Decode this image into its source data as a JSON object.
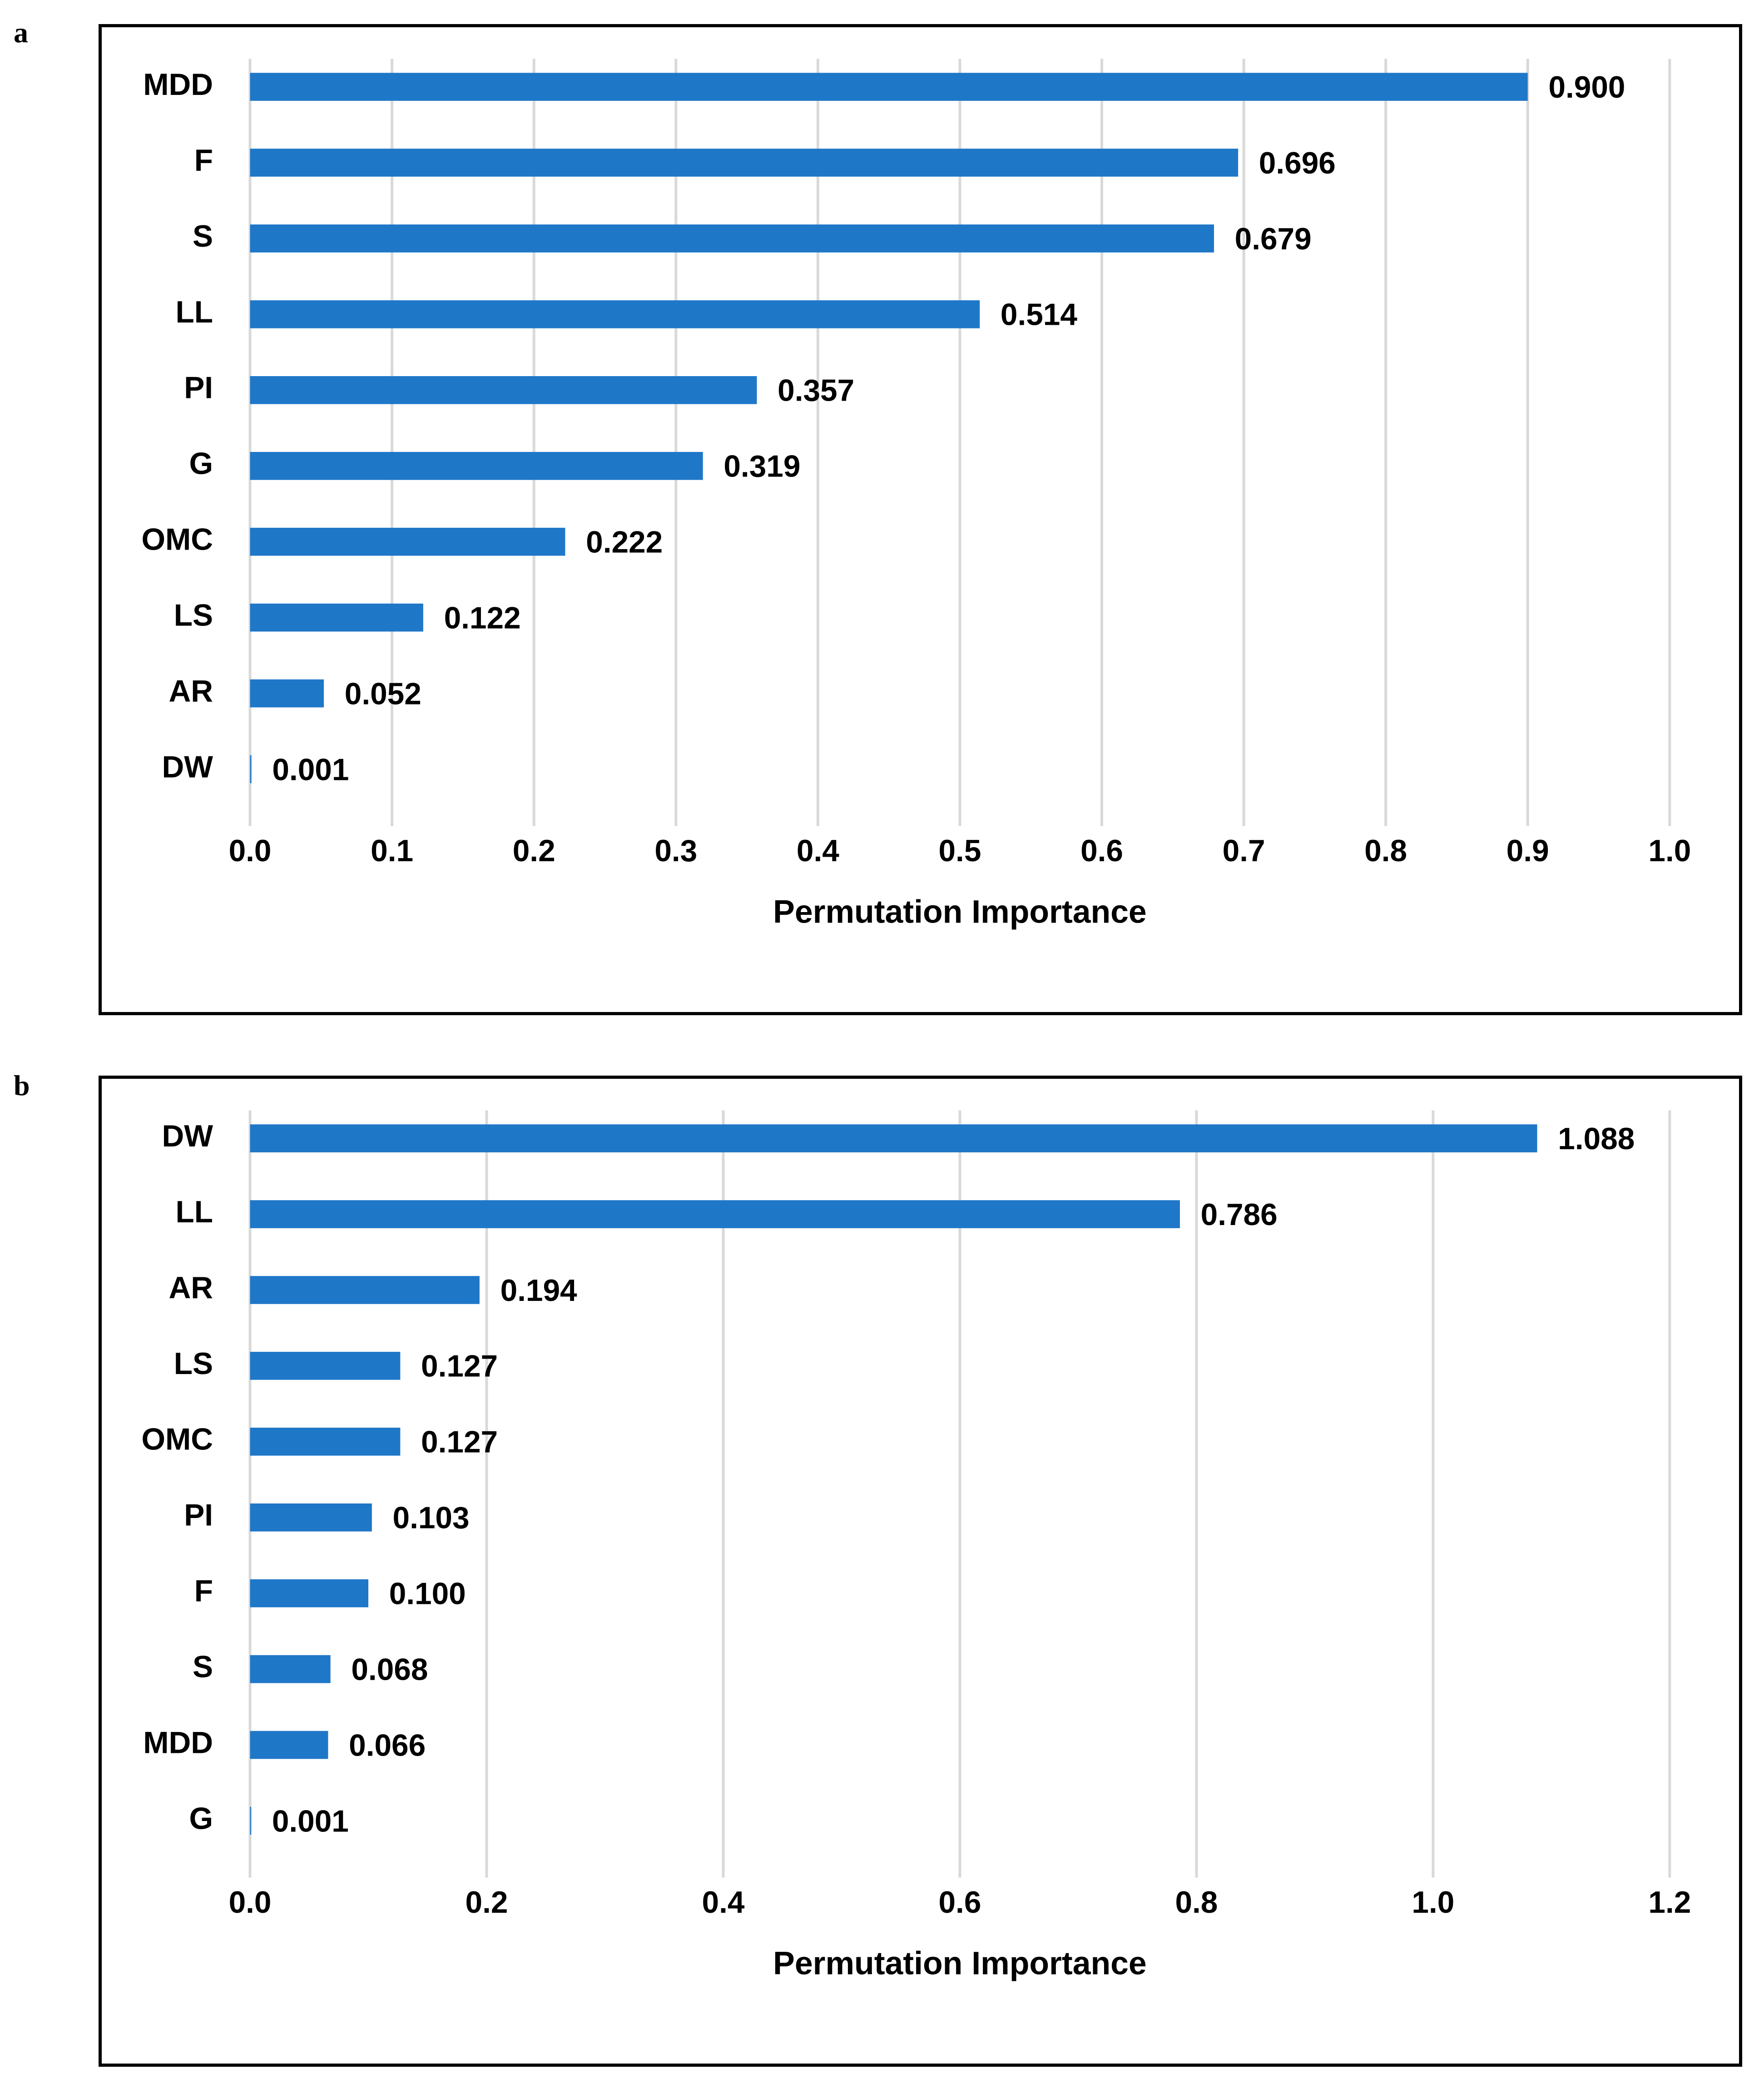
{
  "colors": {
    "bar": "#1f77c8",
    "grid": "#d9d9d9",
    "frame": "#000000",
    "text": "#000000"
  },
  "chart_data": [
    {
      "panel_label": "a",
      "type": "bar",
      "orientation": "horizontal",
      "categories": [
        "MDD",
        "F",
        "S",
        "LL",
        "PI",
        "G",
        "OMC",
        "LS",
        "AR",
        "DW"
      ],
      "values": [
        0.9,
        0.696,
        0.679,
        0.514,
        0.357,
        0.319,
        0.222,
        0.122,
        0.052,
        0.001
      ],
      "value_labels": [
        "0.900",
        "0.696",
        "0.679",
        "0.514",
        "0.357",
        "0.319",
        "0.222",
        "0.122",
        "0.052",
        "0.001"
      ],
      "xlabel": "Permutation Importance",
      "ylabel": "",
      "xlim": [
        0,
        1.0
      ],
      "xticks": [
        0.0,
        0.1,
        0.2,
        0.3,
        0.4,
        0.5,
        0.6,
        0.7,
        0.8,
        0.9,
        1.0
      ],
      "xtick_labels": [
        "0.0",
        "0.1",
        "0.2",
        "0.3",
        "0.4",
        "0.5",
        "0.6",
        "0.7",
        "0.8",
        "0.9",
        "1.0"
      ],
      "grid": "vertical",
      "legend": "none"
    },
    {
      "panel_label": "b",
      "type": "bar",
      "orientation": "horizontal",
      "categories": [
        "DW",
        "LL",
        "AR",
        "LS",
        "OMC",
        "PI",
        "F",
        "S",
        "MDD",
        "G"
      ],
      "values": [
        1.088,
        0.786,
        0.194,
        0.127,
        0.127,
        0.103,
        0.1,
        0.068,
        0.066,
        0.001
      ],
      "value_labels": [
        "1.088",
        "0.786",
        "0.194",
        "0.127",
        "0.127",
        "0.103",
        "0.100",
        "0.068",
        "0.066",
        "0.001"
      ],
      "xlabel": "Permutation Importance",
      "ylabel": "",
      "xlim": [
        0,
        1.2
      ],
      "xticks": [
        0.0,
        0.2,
        0.4,
        0.6,
        0.8,
        1.0,
        1.2
      ],
      "xtick_labels": [
        "0.0",
        "0.2",
        "0.4",
        "0.6",
        "0.8",
        "1.0",
        "1.2"
      ],
      "grid": "vertical",
      "legend": "none"
    }
  ]
}
